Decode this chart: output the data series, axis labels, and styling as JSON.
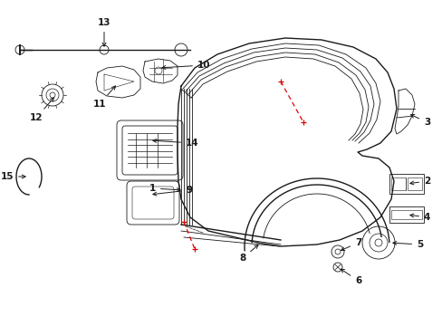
{
  "bg_color": "#ffffff",
  "line_color": "#1a1a1a",
  "red_color": "#dd0000",
  "figsize": [
    4.89,
    3.6
  ],
  "dpi": 100,
  "lw_main": 1.0,
  "lw_thin": 0.6,
  "lw_thick": 1.4
}
